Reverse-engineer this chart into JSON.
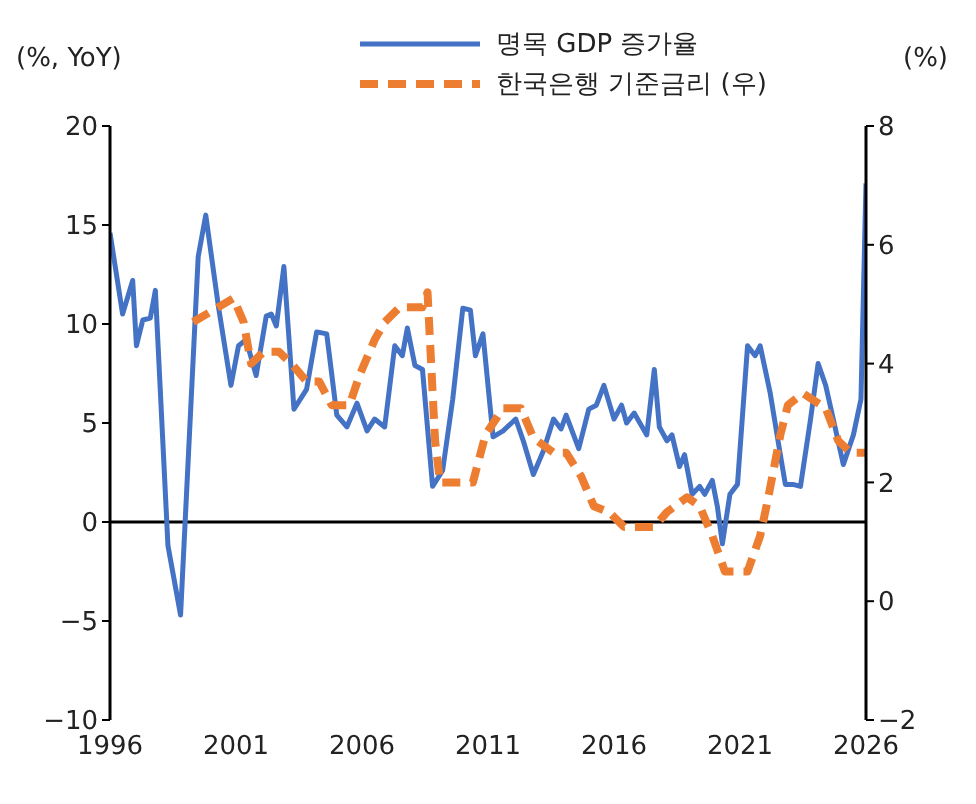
{
  "chart_data": {
    "type": "line",
    "ylabel": "(%, YoY)",
    "y2label": "(%)",
    "xlim": [
      1996,
      2026
    ],
    "xticks": [
      1996,
      2001,
      2006,
      2011,
      2016,
      2021,
      2026
    ],
    "ylim": [
      -10,
      20
    ],
    "yticks": [
      -10,
      -5,
      0,
      5,
      10,
      15,
      20
    ],
    "y2lim": [
      -2,
      8
    ],
    "y2ticks": [
      -2,
      0,
      2,
      4,
      6,
      8
    ],
    "legend": "top",
    "ref_lines": [
      {
        "axis": "y",
        "value": 0,
        "color": "#000000"
      }
    ],
    "series": [
      {
        "name": "명목 GDP 증가율",
        "color": "#4472c4",
        "line_style": "solid",
        "x": [
          1996.0,
          1996.5,
          1996.9,
          1997.05,
          1997.3,
          1997.6,
          1997.8,
          1998.3,
          1998.8,
          1999.5,
          1999.8,
          2000.3,
          2000.8,
          2001.1,
          2001.4,
          2001.8,
          2002.2,
          2002.4,
          2002.6,
          2002.9,
          2003.3,
          2003.8,
          2004.2,
          2004.6,
          2005.0,
          2005.4,
          2005.8,
          2006.2,
          2006.5,
          2006.9,
          2007.3,
          2007.6,
          2007.8,
          2008.1,
          2008.4,
          2008.8,
          2009.2,
          2009.6,
          2010.0,
          2010.3,
          2010.5,
          2010.8,
          2011.2,
          2011.6,
          2012.1,
          2012.4,
          2012.8,
          2013.2,
          2013.6,
          2013.9,
          2014.1,
          2014.6,
          2015.0,
          2015.3,
          2015.6,
          2016.0,
          2016.3,
          2016.5,
          2016.8,
          2017.3,
          2017.6,
          2017.8,
          2018.1,
          2018.3,
          2018.6,
          2018.8,
          2019.1,
          2019.4,
          2019.6,
          2019.9,
          2020.1,
          2020.3,
          2020.6,
          2020.9,
          2021.3,
          2021.6,
          2021.8,
          2022.2,
          2022.6,
          2022.8,
          2023.1,
          2023.4,
          2023.8,
          2024.1,
          2024.4,
          2024.7,
          2025.1,
          2025.5,
          2025.8,
          2026.0
        ],
        "values": [
          14.6,
          10.5,
          12.2,
          8.9,
          10.2,
          10.3,
          11.7,
          -1.2,
          -4.7,
          13.4,
          15.5,
          10.9,
          6.9,
          8.9,
          9.2,
          7.4,
          10.4,
          10.5,
          9.9,
          12.9,
          5.7,
          6.7,
          9.6,
          9.5,
          5.4,
          4.8,
          6.0,
          4.6,
          5.2,
          4.8,
          8.9,
          8.4,
          9.8,
          7.9,
          7.7,
          1.8,
          2.6,
          6.2,
          10.8,
          10.7,
          8.4,
          9.5,
          4.3,
          4.6,
          5.2,
          4.1,
          2.4,
          3.6,
          5.2,
          4.7,
          5.4,
          3.7,
          5.7,
          5.9,
          6.9,
          5.2,
          5.9,
          5.0,
          5.5,
          4.4,
          7.7,
          4.8,
          4.1,
          4.4,
          2.8,
          3.4,
          1.4,
          1.8,
          1.4,
          2.1,
          0.8,
          -1.1,
          1.4,
          1.9,
          8.9,
          8.4,
          8.9,
          6.5,
          3.4,
          1.9,
          1.9,
          1.8,
          5.2,
          8.0,
          6.9,
          5.2,
          2.9,
          4.4,
          6.2,
          17.1
        ]
      },
      {
        "name": "한국은행 기준금리 (우)",
        "color": "#ed7d31",
        "axis": "y2",
        "line_style": "dashed",
        "x": [
          1999.3,
          2000.3,
          2000.9,
          2001.3,
          2001.6,
          2002.1,
          2002.7,
          2003.2,
          2003.8,
          2004.3,
          2004.8,
          2005.5,
          2005.9,
          2006.5,
          2006.9,
          2007.5,
          2008.4,
          2008.6,
          2008.9,
          2009.1,
          2010.4,
          2010.9,
          2011.6,
          2012.3,
          2012.8,
          2013.6,
          2014.1,
          2014.7,
          2015.2,
          2015.8,
          2016.4,
          2017.6,
          2018.1,
          2018.9,
          2019.4,
          2019.9,
          2020.4,
          2021.3,
          2021.8,
          2022.1,
          2022.6,
          2022.9,
          2023.5,
          2024.4,
          2024.9,
          2025.4,
          2026.0
        ],
        "values": [
          4.7,
          4.95,
          5.1,
          4.7,
          4.0,
          4.2,
          4.2,
          4.0,
          3.7,
          3.7,
          3.3,
          3.3,
          3.8,
          4.4,
          4.7,
          4.95,
          4.95,
          5.2,
          2.7,
          2.0,
          2.0,
          2.8,
          3.25,
          3.25,
          2.75,
          2.5,
          2.5,
          2.1,
          1.6,
          1.5,
          1.25,
          1.25,
          1.5,
          1.75,
          1.6,
          1.1,
          0.5,
          0.5,
          1.1,
          1.7,
          2.8,
          3.3,
          3.5,
          3.25,
          2.7,
          2.5,
          2.5
        ]
      }
    ]
  }
}
